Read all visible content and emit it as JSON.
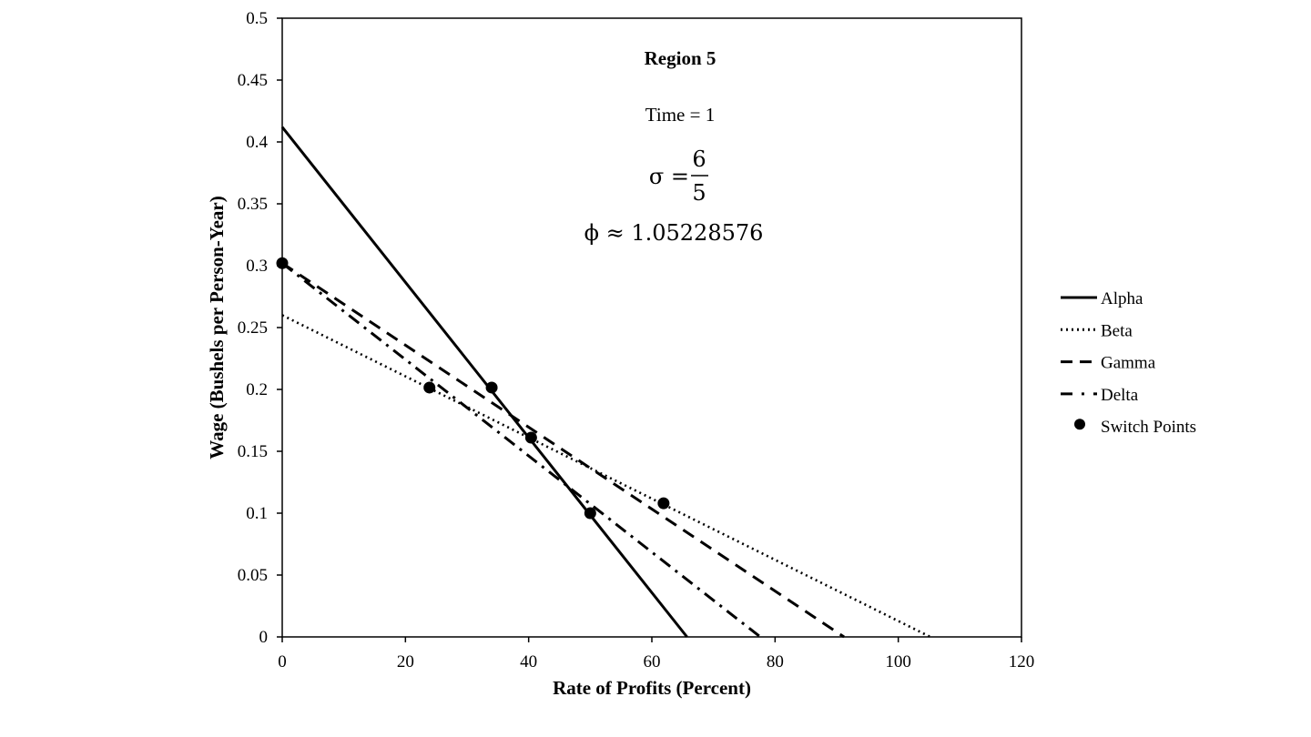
{
  "chart_data": {
    "type": "line",
    "xlabel": "Rate of Profits (Percent)",
    "ylabel": "Wage (Bushels per Person-Year)",
    "xlim": [
      0,
      120
    ],
    "ylim": [
      0,
      0.5
    ],
    "x_ticks": [
      "0",
      "20",
      "40",
      "60",
      "80",
      "100",
      "120"
    ],
    "y_ticks": [
      "0",
      "0.05",
      "0.1",
      "0.15",
      "0.2",
      "0.25",
      "0.3",
      "0.35",
      "0.4",
      "0.45",
      "0.5"
    ],
    "grid": false,
    "legend_position": "right",
    "annotations": {
      "title": "Region 5",
      "time": "Time = 1",
      "sigma_symbol": "σ =",
      "sigma_numerator": "6",
      "sigma_denominator": "5",
      "phi": "ϕ ≈ 1.05228576"
    },
    "series": [
      {
        "name": "Alpha",
        "style": "solid",
        "color": "#000000",
        "x": [
          0,
          65.7
        ],
        "y": [
          0.412,
          0
        ]
      },
      {
        "name": "Beta",
        "style": "dotted",
        "color": "#000000",
        "x": [
          0,
          105.2
        ],
        "y": [
          0.26,
          0
        ]
      },
      {
        "name": "Gamma",
        "style": "dashed",
        "color": "#000000",
        "x": [
          0,
          91.2
        ],
        "y": [
          0.302,
          0
        ]
      },
      {
        "name": "Delta",
        "style": "dash-dot",
        "color": "#000000",
        "x": [
          0,
          77.6
        ],
        "y": [
          0.302,
          0
        ]
      }
    ],
    "switch_points": {
      "name": "Switch Points",
      "x": [
        0,
        23.9,
        34.0,
        40.4,
        50.0,
        61.9
      ],
      "y": [
        0.302,
        0.2015,
        0.2015,
        0.161,
        0.1,
        0.108
      ]
    }
  }
}
